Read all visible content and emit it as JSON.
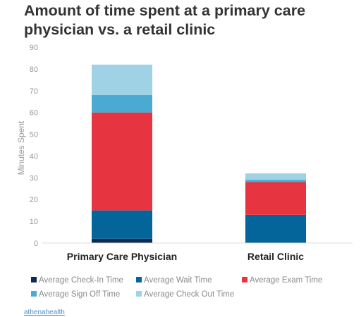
{
  "chart_data": {
    "type": "bar",
    "stacked": true,
    "title": "Amount of time spent at a primary care physician vs. a retail clinic",
    "xlabel": "",
    "ylabel": "Minutes Spent",
    "ylim": [
      0,
      90
    ],
    "yticks": [
      0,
      10,
      20,
      30,
      40,
      50,
      60,
      70,
      80,
      90
    ],
    "grid": false,
    "legend_position": "bottom",
    "categories": [
      "Primary Care Physician",
      "Retail Clinic"
    ],
    "series": [
      {
        "name": "Average Check-In Time",
        "color": "#0d2a57",
        "values": [
          2,
          0
        ]
      },
      {
        "name": "Average Wait Time",
        "color": "#04659a",
        "values": [
          13,
          13
        ]
      },
      {
        "name": "Average Exam Time",
        "color": "#e63440",
        "values": [
          45,
          15
        ]
      },
      {
        "name": "Average Sign Off Time",
        "color": "#4aaad2",
        "values": [
          8,
          1
        ]
      },
      {
        "name": "Average Check Out Time",
        "color": "#9fd2e4",
        "values": [
          14,
          3
        ]
      }
    ]
  },
  "source": "athenahealth"
}
